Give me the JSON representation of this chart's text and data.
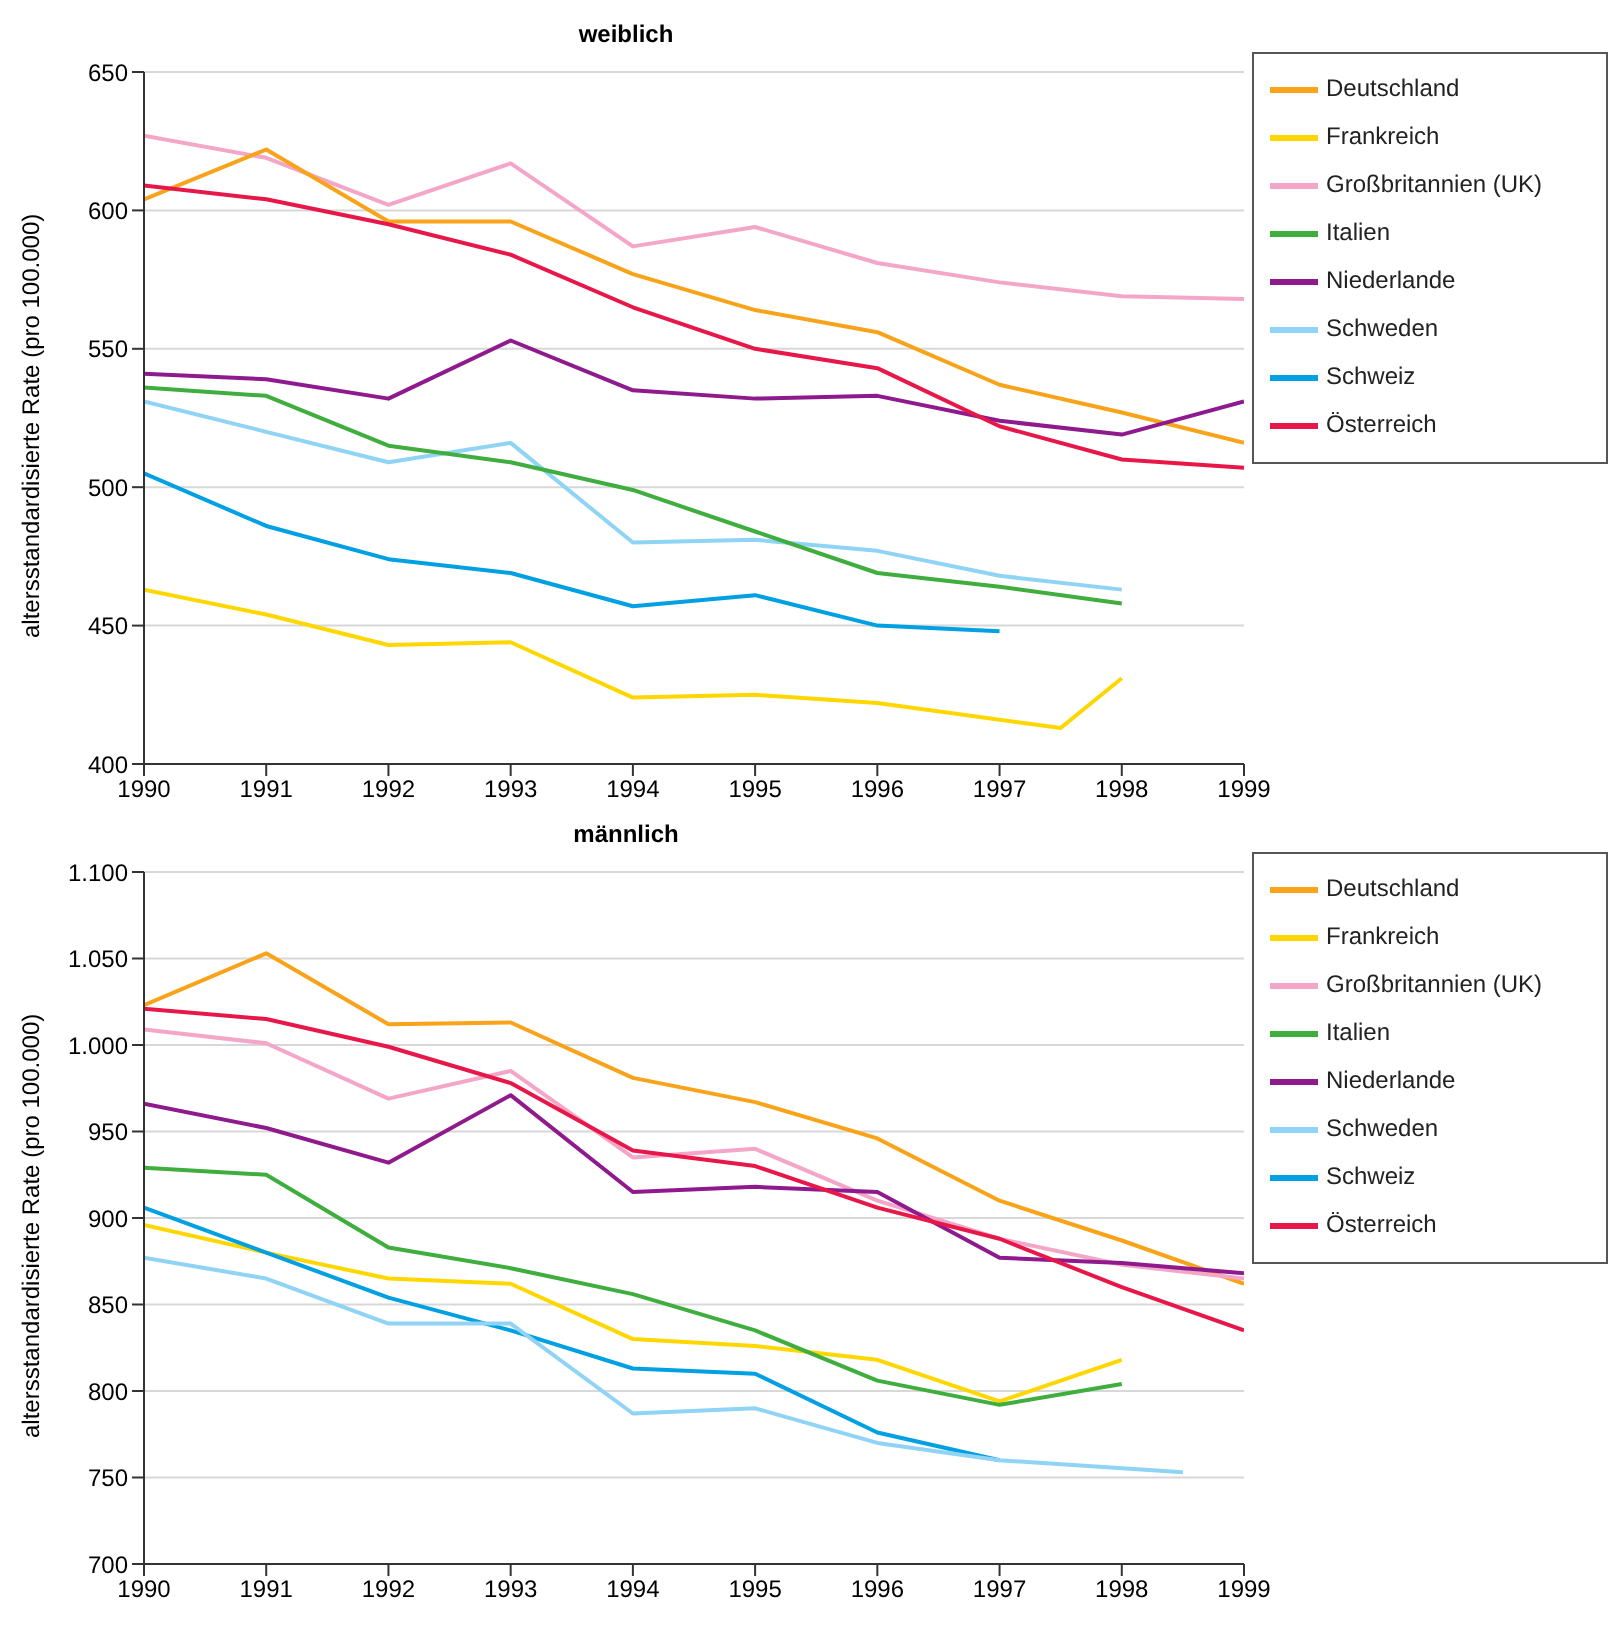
{
  "chart_data": [
    {
      "type": "line",
      "title": "weiblich",
      "ylabel": "altersstandardisierte Rate (pro 100.000)",
      "x": [
        1990,
        1991,
        1992,
        1993,
        1994,
        1995,
        1996,
        1997,
        1998,
        1999
      ],
      "xlim": [
        1990,
        1999
      ],
      "xticks": [
        1990,
        1991,
        1992,
        1993,
        1994,
        1995,
        1996,
        1997,
        1998,
        1999
      ],
      "ylim": [
        400,
        650
      ],
      "yticks": [
        400,
        450,
        500,
        550,
        600,
        650
      ],
      "grid": "y",
      "legend": "right",
      "marker": "none",
      "line_style": "solid",
      "series": [
        {
          "name": "Großbritannien (UK)",
          "color": "#f4a6c8",
          "values": [
            627,
            619,
            602,
            617,
            587,
            594,
            581,
            574,
            569,
            568
          ]
        },
        {
          "name": "Deutschland",
          "color": "#f9a31b",
          "values": [
            604,
            622,
            596,
            596,
            577,
            564,
            556,
            537,
            527,
            516
          ]
        },
        {
          "name": "Niederlande",
          "color": "#8e1a8e",
          "values": [
            541,
            539,
            532,
            553,
            535,
            532,
            533,
            524,
            519,
            531
          ]
        },
        {
          "name": "Österreich",
          "color": "#e8174a",
          "values": [
            609,
            604,
            595,
            584,
            565,
            550,
            543,
            522,
            510,
            507
          ]
        },
        {
          "name": "Schweden",
          "color": "#8fd3f5",
          "x": [
            1990,
            1991,
            1992,
            1993,
            1994,
            1995,
            1996,
            1997,
            1998
          ],
          "values": [
            531,
            520,
            509,
            516,
            480,
            481,
            477,
            468,
            463
          ]
        },
        {
          "name": "Italien",
          "color": "#3fae3f",
          "x": [
            1990,
            1991,
            1992,
            1993,
            1994,
            1995,
            1996,
            1997,
            1998
          ],
          "values": [
            536,
            533,
            515,
            509,
            499,
            484,
            469,
            464,
            458
          ]
        },
        {
          "name": "Schweiz",
          "color": "#00a0e3",
          "x": [
            1990,
            1991,
            1992,
            1993,
            1994,
            1995,
            1996,
            1997
          ],
          "values": [
            505,
            486,
            474,
            469,
            457,
            461,
            450,
            448
          ]
        },
        {
          "name": "Frankreich",
          "color": "#ffd700",
          "x": [
            1990,
            1991,
            1992,
            1993,
            1994,
            1995,
            1996,
            1997.5,
            1998
          ],
          "values": [
            463,
            454,
            443,
            444,
            424,
            425,
            422,
            413,
            431
          ]
        }
      ]
    },
    {
      "type": "line",
      "title": "männlich",
      "ylabel": "altersstandardisierte Rate (pro 100.000)",
      "x": [
        1990,
        1991,
        1992,
        1993,
        1994,
        1995,
        1996,
        1997,
        1998,
        1999
      ],
      "xlim": [
        1990,
        1999
      ],
      "xticks": [
        1990,
        1991,
        1992,
        1993,
        1994,
        1995,
        1996,
        1997,
        1998,
        1999
      ],
      "ylim": [
        700,
        1100
      ],
      "yticks": [
        {
          "value": 700,
          "label": "700"
        },
        {
          "value": 750,
          "label": "750"
        },
        {
          "value": 800,
          "label": "800"
        },
        {
          "value": 850,
          "label": "850"
        },
        {
          "value": 900,
          "label": "900"
        },
        {
          "value": 950,
          "label": "950"
        },
        {
          "value": 1000,
          "label": "1.000"
        },
        {
          "value": 1050,
          "label": "1.050"
        },
        {
          "value": 1100,
          "label": "1.100"
        }
      ],
      "grid": "y",
      "legend": "right",
      "marker": "none",
      "line_style": "solid",
      "series": [
        {
          "name": "Deutschland",
          "color": "#f9a31b",
          "values": [
            1023,
            1053,
            1012,
            1013,
            981,
            967,
            946,
            910,
            887,
            862
          ]
        },
        {
          "name": "Großbritannien (UK)",
          "color": "#f4a6c8",
          "values": [
            1009,
            1001,
            969,
            985,
            935,
            940,
            910,
            888,
            873,
            865
          ]
        },
        {
          "name": "Niederlande",
          "color": "#8e1a8e",
          "values": [
            966,
            952,
            932,
            971,
            915,
            918,
            915,
            877,
            874,
            868
          ]
        },
        {
          "name": "Österreich",
          "color": "#e8174a",
          "values": [
            1021,
            1015,
            999,
            978,
            939,
            930,
            906,
            888,
            860,
            835
          ]
        },
        {
          "name": "Frankreich",
          "color": "#ffd700",
          "x": [
            1990,
            1991,
            1992,
            1993,
            1994,
            1995,
            1996,
            1997,
            1998
          ],
          "values": [
            896,
            880,
            865,
            862,
            830,
            826,
            818,
            794,
            818
          ]
        },
        {
          "name": "Italien",
          "color": "#3fae3f",
          "x": [
            1990,
            1991,
            1992,
            1993,
            1994,
            1995,
            1996,
            1997,
            1998
          ],
          "values": [
            929,
            925,
            883,
            871,
            856,
            835,
            806,
            792,
            804
          ]
        },
        {
          "name": "Schweiz",
          "color": "#00a0e3",
          "x": [
            1990,
            1991,
            1992,
            1993,
            1994,
            1995,
            1996,
            1997
          ],
          "values": [
            906,
            880,
            854,
            835,
            813,
            810,
            776,
            760
          ]
        },
        {
          "name": "Schweden",
          "color": "#8fd3f5",
          "x": [
            1990,
            1991,
            1992,
            1993,
            1994,
            1995,
            1996,
            1997,
            1998.5
          ],
          "values": [
            877,
            865,
            839,
            839,
            787,
            790,
            770,
            760,
            753
          ]
        }
      ]
    }
  ]
}
